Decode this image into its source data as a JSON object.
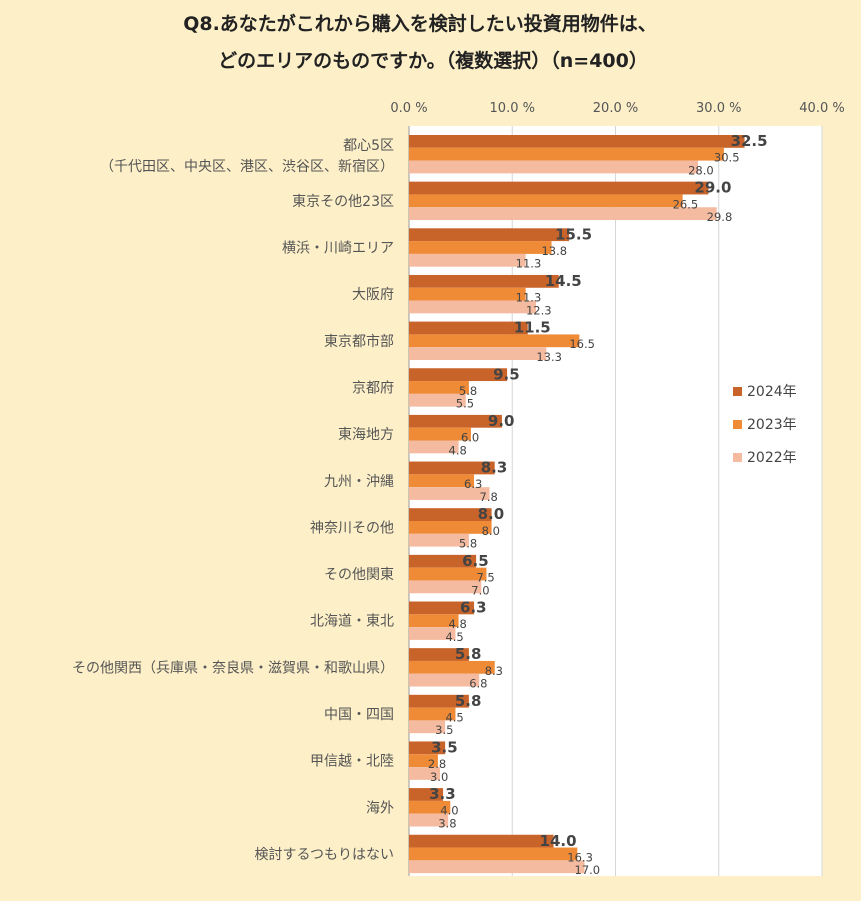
{
  "chart_data": {
    "type": "bar",
    "orientation": "horizontal",
    "title_line1": "Q8.あなたがこれから購入を検討したい投資用物件は、",
    "title_line2": "どのエリアのものですか。（複数選択）（n=400）",
    "xlim": [
      0,
      40
    ],
    "xticks": [
      "0.0 %",
      "10.0 %",
      "20.0 %",
      "30.0 %",
      "40.0 %"
    ],
    "grid": true,
    "legend_placement": "right",
    "categories": [
      [
        "都心5区",
        "（千代田区、中央区、港区、渋谷区、新宿区）"
      ],
      [
        "東京その他23区"
      ],
      [
        "横浜・川崎エリア"
      ],
      [
        "大阪府"
      ],
      [
        "東京都市部"
      ],
      [
        "京都府"
      ],
      [
        "東海地方"
      ],
      [
        "九州・沖縄"
      ],
      [
        "神奈川その他"
      ],
      [
        "その他関東"
      ],
      [
        "北海道・東北"
      ],
      [
        "その他関西（兵庫県・奈良県・滋賀県・和歌山県）"
      ],
      [
        "中国・四国"
      ],
      [
        "甲信越・北陸"
      ],
      [
        "海外"
      ],
      [
        "検討するつもりはない"
      ]
    ],
    "series": [
      {
        "name": "2024年",
        "color": "#c8642a",
        "values": [
          32.5,
          29.0,
          15.5,
          14.5,
          11.5,
          9.5,
          9.0,
          8.3,
          8.0,
          6.5,
          6.3,
          5.8,
          5.8,
          3.5,
          3.3,
          14.0
        ]
      },
      {
        "name": "2023年",
        "color": "#ef8a37",
        "values": [
          30.5,
          26.5,
          13.8,
          11.3,
          16.5,
          5.8,
          6.0,
          6.3,
          8.0,
          7.5,
          4.8,
          8.3,
          4.5,
          2.8,
          4.0,
          16.3
        ]
      },
      {
        "name": "2022年",
        "color": "#f5bba0",
        "values": [
          28.0,
          29.8,
          11.3,
          12.3,
          13.3,
          5.5,
          4.8,
          7.8,
          5.8,
          7.0,
          4.5,
          6.8,
          3.5,
          3.0,
          3.8,
          17.0
        ]
      }
    ]
  }
}
